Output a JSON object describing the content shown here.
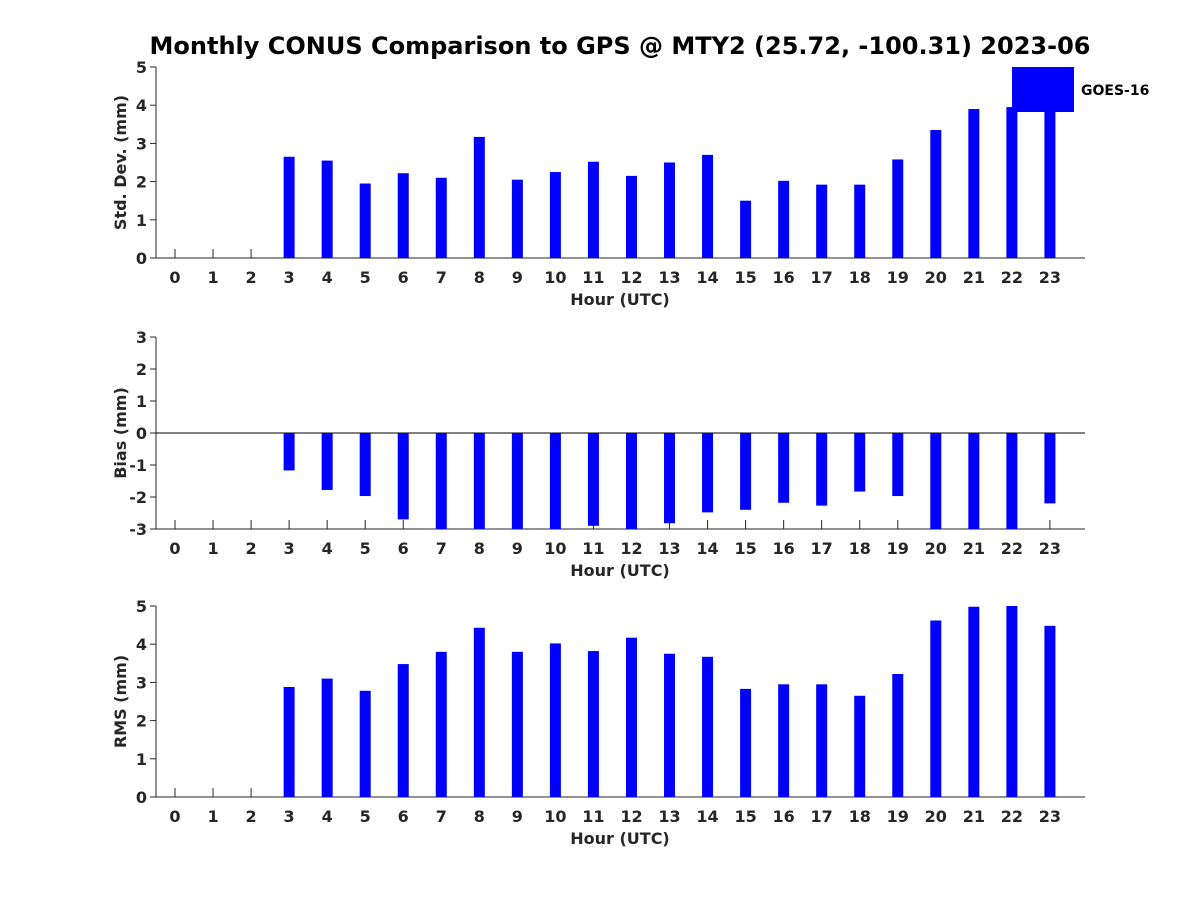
{
  "title": "Monthly CONUS Comparison to GPS @ MTY2 (25.72, -100.31) 2023-06",
  "legend": {
    "label": "GOES-16",
    "color": "#0000ff",
    "placement": "top-right"
  },
  "chart_data": [
    {
      "type": "bar",
      "id": "std",
      "xlabel": "Hour (UTC)",
      "ylabel": "Std. Dev. (mm)",
      "ylim": [
        0,
        5
      ],
      "yticks": [
        0,
        1,
        2,
        3,
        4,
        5
      ],
      "categories": [
        "0",
        "1",
        "2",
        "3",
        "4",
        "5",
        "6",
        "7",
        "8",
        "9",
        "10",
        "11",
        "12",
        "13",
        "14",
        "15",
        "16",
        "17",
        "18",
        "19",
        "20",
        "21",
        "22",
        "23"
      ],
      "series": [
        {
          "name": "GOES-16",
          "color": "#0000ff",
          "values": [
            null,
            null,
            null,
            2.65,
            2.55,
            1.95,
            2.22,
            2.1,
            3.17,
            2.05,
            2.25,
            2.52,
            2.15,
            2.5,
            2.7,
            1.5,
            2.02,
            1.92,
            1.92,
            2.58,
            3.35,
            3.9,
            3.95,
            3.95
          ]
        }
      ]
    },
    {
      "type": "bar",
      "id": "bias",
      "xlabel": "Hour (UTC)",
      "ylabel": "Bias (mm)",
      "ylim": [
        -3,
        3
      ],
      "yticks": [
        -3,
        -2,
        -1,
        0,
        1,
        2,
        3
      ],
      "categories": [
        "0",
        "1",
        "2",
        "3",
        "4",
        "5",
        "6",
        "7",
        "8",
        "9",
        "10",
        "11",
        "12",
        "13",
        "14",
        "15",
        "16",
        "17",
        "18",
        "19",
        "20",
        "21",
        "22",
        "23"
      ],
      "series": [
        {
          "name": "GOES-16",
          "color": "#0000ff",
          "values": [
            null,
            null,
            null,
            -1.17,
            -1.78,
            -1.97,
            -2.7,
            -3.0,
            -3.0,
            -3.0,
            -3.0,
            -2.9,
            -3.0,
            -2.82,
            -2.48,
            -2.4,
            -2.18,
            -2.27,
            -1.83,
            -1.97,
            -3.0,
            -3.0,
            -3.0,
            -2.2
          ]
        }
      ]
    },
    {
      "type": "bar",
      "id": "rms",
      "xlabel": "Hour (UTC)",
      "ylabel": "RMS (mm)",
      "ylim": [
        0,
        5
      ],
      "yticks": [
        0,
        1,
        2,
        3,
        4,
        5
      ],
      "categories": [
        "0",
        "1",
        "2",
        "3",
        "4",
        "5",
        "6",
        "7",
        "8",
        "9",
        "10",
        "11",
        "12",
        "13",
        "14",
        "15",
        "16",
        "17",
        "18",
        "19",
        "20",
        "21",
        "22",
        "23"
      ],
      "series": [
        {
          "name": "GOES-16",
          "color": "#0000ff",
          "values": [
            null,
            null,
            null,
            2.88,
            3.1,
            2.78,
            3.48,
            3.8,
            4.43,
            3.8,
            4.02,
            3.82,
            4.17,
            3.75,
            3.67,
            2.83,
            2.95,
            2.95,
            2.65,
            3.22,
            4.62,
            4.98,
            5.0,
            4.48
          ]
        }
      ]
    }
  ]
}
